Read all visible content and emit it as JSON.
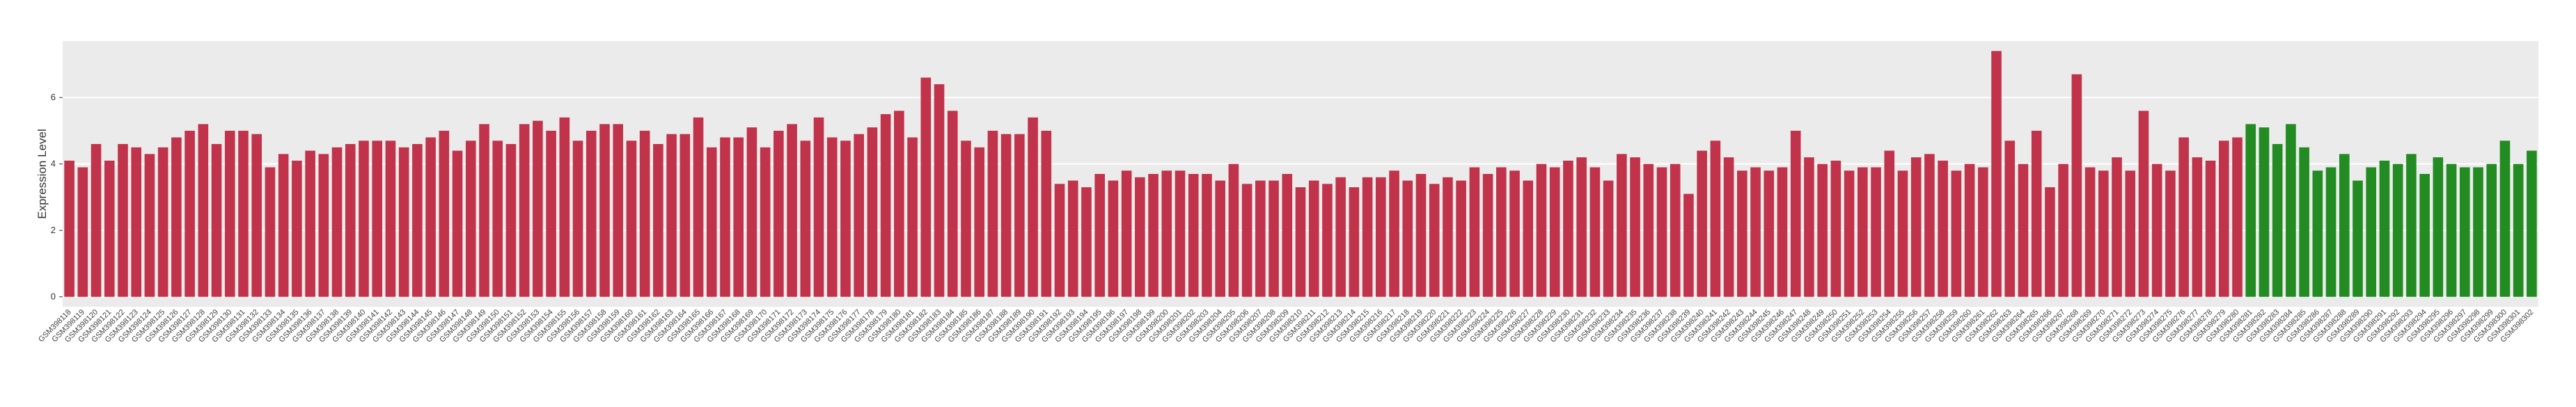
{
  "chart_data": {
    "type": "bar",
    "y_label": "Expression Level",
    "categories": [
      "GSM398118",
      "GSM398119",
      "GSM398120",
      "GSM398121",
      "GSM398122",
      "GSM398123",
      "GSM398124",
      "GSM398125",
      "GSM398126",
      "GSM398127",
      "GSM398128",
      "GSM398129",
      "GSM398130",
      "GSM398131",
      "GSM398132",
      "GSM398133",
      "GSM398134",
      "GSM398135",
      "GSM398136",
      "GSM398137",
      "GSM398138",
      "GSM398139",
      "GSM398140",
      "GSM398141",
      "GSM398142",
      "GSM398143",
      "GSM398144",
      "GSM398145",
      "GSM398146",
      "GSM398147",
      "GSM398148",
      "GSM398149",
      "GSM398150",
      "GSM398151",
      "GSM398152",
      "GSM398153",
      "GSM398154",
      "GSM398155",
      "GSM398156",
      "GSM398157",
      "GSM398158",
      "GSM398159",
      "GSM398160",
      "GSM398161",
      "GSM398162",
      "GSM398163",
      "GSM398164",
      "GSM398165",
      "GSM398166",
      "GSM398167",
      "GSM398168",
      "GSM398169",
      "GSM398170",
      "GSM398171",
      "GSM398172",
      "GSM398173",
      "GSM398174",
      "GSM398175",
      "GSM398176",
      "GSM398177",
      "GSM398178",
      "GSM398179",
      "GSM398180",
      "GSM398181",
      "GSM398182",
      "GSM398183",
      "GSM398184",
      "GSM398185",
      "GSM398186",
      "GSM398187",
      "GSM398188",
      "GSM398189",
      "GSM398190",
      "GSM398191",
      "GSM398192",
      "GSM398193",
      "GSM398194",
      "GSM398195",
      "GSM398196",
      "GSM398197",
      "GSM398198",
      "GSM398199",
      "GSM398200",
      "GSM398201",
      "GSM398202",
      "GSM398203",
      "GSM398204",
      "GSM398205",
      "GSM398206",
      "GSM398207",
      "GSM398208",
      "GSM398209",
      "GSM398210",
      "GSM398211",
      "GSM398212",
      "GSM398213",
      "GSM398214",
      "GSM398215",
      "GSM398216",
      "GSM398217",
      "GSM398218",
      "GSM398219",
      "GSM398220",
      "GSM398221",
      "GSM398222",
      "GSM398223",
      "GSM398224",
      "GSM398225",
      "GSM398226",
      "GSM398227",
      "GSM398228",
      "GSM398229",
      "GSM398230",
      "GSM398231",
      "GSM398232",
      "GSM398233",
      "GSM398234",
      "GSM398235",
      "GSM398236",
      "GSM398237",
      "GSM398238",
      "GSM398239",
      "GSM398240",
      "GSM398241",
      "GSM398242",
      "GSM398243",
      "GSM398244",
      "GSM398245",
      "GSM398246",
      "GSM398247",
      "GSM398248",
      "GSM398249",
      "GSM398250",
      "GSM398251",
      "GSM398252",
      "GSM398253",
      "GSM398254",
      "GSM398255",
      "GSM398256",
      "GSM398257",
      "GSM398258",
      "GSM398259",
      "GSM398260",
      "GSM398261",
      "GSM398262",
      "GSM398263",
      "GSM398264",
      "GSM398265",
      "GSM398266",
      "GSM398267",
      "GSM398268",
      "GSM398269",
      "GSM398270",
      "GSM398271",
      "GSM398272",
      "GSM398273",
      "GSM398274",
      "GSM398275",
      "GSM398276",
      "GSM398277",
      "GSM398278",
      "GSM398279",
      "GSM398280",
      "GSM398281",
      "GSM398282",
      "GSM398283",
      "GSM398284",
      "GSM398285",
      "GSM398286",
      "GSM398287",
      "GSM398288",
      "GSM398289",
      "GSM398290",
      "GSM398291",
      "GSM398292",
      "GSM398293",
      "GSM398294",
      "GSM398295",
      "GSM398296",
      "GSM398297",
      "GSM398298",
      "GSM398299",
      "GSM398300",
      "GSM398301",
      "GSM398302"
    ],
    "values": [
      4.1,
      3.9,
      4.6,
      4.1,
      4.6,
      4.5,
      4.3,
      4.5,
      4.8,
      5.0,
      5.2,
      4.6,
      5.0,
      5.0,
      4.9,
      3.9,
      4.3,
      4.1,
      4.4,
      4.3,
      4.5,
      4.6,
      4.7,
      4.7,
      4.7,
      4.5,
      4.6,
      4.8,
      5.0,
      4.4,
      4.7,
      5.2,
      4.7,
      4.6,
      5.2,
      5.3,
      5.0,
      5.4,
      4.7,
      5.0,
      5.2,
      5.2,
      4.7,
      5.0,
      4.6,
      4.9,
      4.9,
      5.4,
      4.5,
      4.8,
      4.8,
      5.1,
      4.5,
      5.0,
      5.2,
      4.7,
      5.4,
      4.8,
      4.7,
      4.9,
      5.1,
      5.5,
      5.6,
      4.8,
      6.6,
      6.4,
      5.6,
      4.7,
      4.5,
      5.0,
      4.9,
      4.9,
      5.4,
      5.0,
      3.4,
      3.5,
      3.3,
      3.7,
      3.5,
      3.8,
      3.6,
      3.7,
      3.8,
      3.8,
      3.7,
      3.7,
      3.5,
      4.0,
      3.4,
      3.5,
      3.5,
      3.7,
      3.3,
      3.5,
      3.4,
      3.6,
      3.3,
      3.6,
      3.6,
      3.8,
      3.5,
      3.7,
      3.4,
      3.6,
      3.5,
      3.9,
      3.7,
      3.9,
      3.8,
      3.5,
      4.0,
      3.9,
      4.1,
      4.2,
      3.9,
      3.5,
      4.3,
      4.2,
      4.0,
      3.9,
      4.0,
      3.1,
      4.4,
      4.7,
      4.2,
      3.8,
      3.9,
      3.8,
      3.9,
      5.0,
      4.2,
      4.0,
      4.1,
      3.8,
      3.9,
      3.9,
      4.4,
      3.8,
      4.2,
      4.3,
      4.1,
      3.8,
      4.0,
      3.9,
      7.4,
      4.7,
      4.0,
      5.0,
      3.3,
      4.0,
      6.7,
      3.9,
      3.8,
      4.2,
      3.8,
      5.6,
      4.0,
      3.8,
      4.8,
      4.2,
      4.1,
      4.7,
      4.8,
      5.2,
      5.1,
      4.6,
      5.2,
      4.5,
      3.8,
      3.9,
      4.3,
      3.5,
      3.9,
      4.1,
      4.0,
      4.3,
      3.7,
      4.2,
      4.0,
      3.9,
      3.9,
      4.0,
      4.7,
      4.0,
      4.4
    ],
    "colors": [
      "#c1334a",
      "#c1334a",
      "#c1334a",
      "#c1334a",
      "#c1334a",
      "#c1334a",
      "#c1334a",
      "#c1334a",
      "#c1334a",
      "#c1334a",
      "#c1334a",
      "#c1334a",
      "#c1334a",
      "#c1334a",
      "#c1334a",
      "#c1334a",
      "#c1334a",
      "#c1334a",
      "#c1334a",
      "#c1334a",
      "#c1334a",
      "#c1334a",
      "#c1334a",
      "#c1334a",
      "#c1334a",
      "#c1334a",
      "#c1334a",
      "#c1334a",
      "#c1334a",
      "#c1334a",
      "#c1334a",
      "#c1334a",
      "#c1334a",
      "#c1334a",
      "#c1334a",
      "#c1334a",
      "#c1334a",
      "#c1334a",
      "#c1334a",
      "#c1334a",
      "#c1334a",
      "#c1334a",
      "#c1334a",
      "#c1334a",
      "#c1334a",
      "#c1334a",
      "#c1334a",
      "#c1334a",
      "#c1334a",
      "#c1334a",
      "#c1334a",
      "#c1334a",
      "#c1334a",
      "#c1334a",
      "#c1334a",
      "#c1334a",
      "#c1334a",
      "#c1334a",
      "#c1334a",
      "#c1334a",
      "#c1334a",
      "#c1334a",
      "#c1334a",
      "#c1334a",
      "#c1334a",
      "#c1334a",
      "#c1334a",
      "#c1334a",
      "#c1334a",
      "#c1334a",
      "#c1334a",
      "#c1334a",
      "#c1334a",
      "#c1334a",
      "#c1334a",
      "#c1334a",
      "#c1334a",
      "#c1334a",
      "#c1334a",
      "#c1334a",
      "#c1334a",
      "#c1334a",
      "#c1334a",
      "#c1334a",
      "#c1334a",
      "#c1334a",
      "#c1334a",
      "#c1334a",
      "#c1334a",
      "#c1334a",
      "#c1334a",
      "#c1334a",
      "#c1334a",
      "#c1334a",
      "#c1334a",
      "#c1334a",
      "#c1334a",
      "#c1334a",
      "#c1334a",
      "#c1334a",
      "#c1334a",
      "#c1334a",
      "#c1334a",
      "#c1334a",
      "#c1334a",
      "#c1334a",
      "#c1334a",
      "#c1334a",
      "#c1334a",
      "#c1334a",
      "#c1334a",
      "#c1334a",
      "#c1334a",
      "#c1334a",
      "#c1334a",
      "#c1334a",
      "#c1334a",
      "#c1334a",
      "#c1334a",
      "#c1334a",
      "#c1334a",
      "#c1334a",
      "#c1334a",
      "#c1334a",
      "#c1334a",
      "#c1334a",
      "#c1334a",
      "#c1334a",
      "#c1334a",
      "#c1334a",
      "#c1334a",
      "#c1334a",
      "#c1334a",
      "#c1334a",
      "#c1334a",
      "#c1334a",
      "#c1334a",
      "#c1334a",
      "#c1334a",
      "#c1334a",
      "#c1334a",
      "#c1334a",
      "#c1334a",
      "#c1334a",
      "#c1334a",
      "#c1334a",
      "#c1334a",
      "#c1334a",
      "#c1334a",
      "#c1334a",
      "#c1334a",
      "#c1334a",
      "#c1334a",
      "#c1334a",
      "#c1334a",
      "#c1334a",
      "#c1334a",
      "#c1334a",
      "#c1334a",
      "#c1334a",
      "#c1334a",
      "#c1334a",
      "#c1334a",
      "#228b22",
      "#228b22",
      "#228b22",
      "#228b22",
      "#228b22",
      "#228b22",
      "#228b22",
      "#228b22",
      "#228b22",
      "#228b22",
      "#228b22",
      "#228b22",
      "#228b22",
      "#228b22",
      "#228b22",
      "#228b22",
      "#228b22",
      "#228b22",
      "#228b22",
      "#228b22",
      "#228b22",
      "#228b22"
    ],
    "ylim": [
      -0.3,
      7.7
    ],
    "yticks": [
      0,
      2,
      4,
      6
    ],
    "grid": true
  }
}
